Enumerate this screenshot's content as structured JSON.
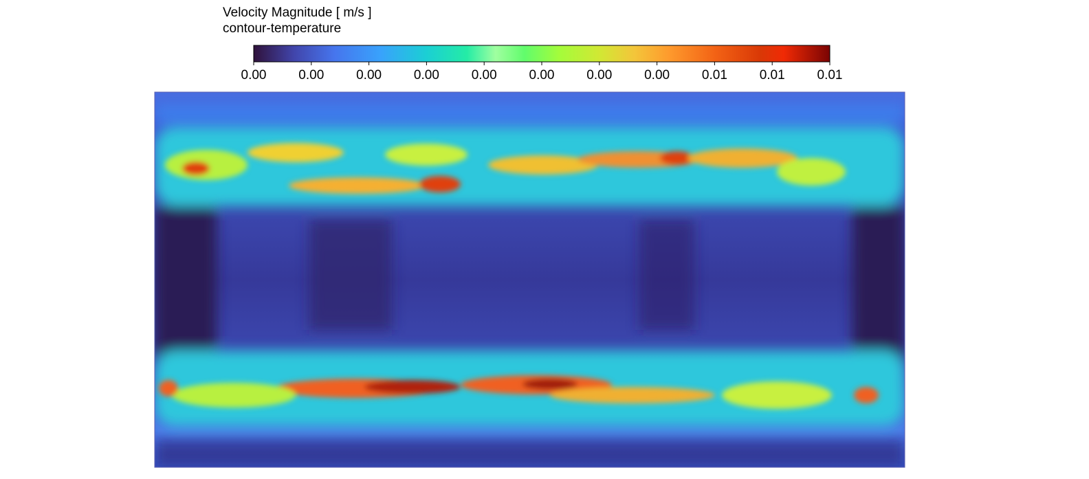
{
  "legend": {
    "title": "Velocity Magnitude [ m/s ]",
    "subtitle": "contour-temperature",
    "tick_labels": [
      "0.00",
      "0.00",
      "0.00",
      "0.00",
      "0.00",
      "0.00",
      "0.00",
      "0.00",
      "0.01",
      "0.01",
      "0.01"
    ]
  }
}
